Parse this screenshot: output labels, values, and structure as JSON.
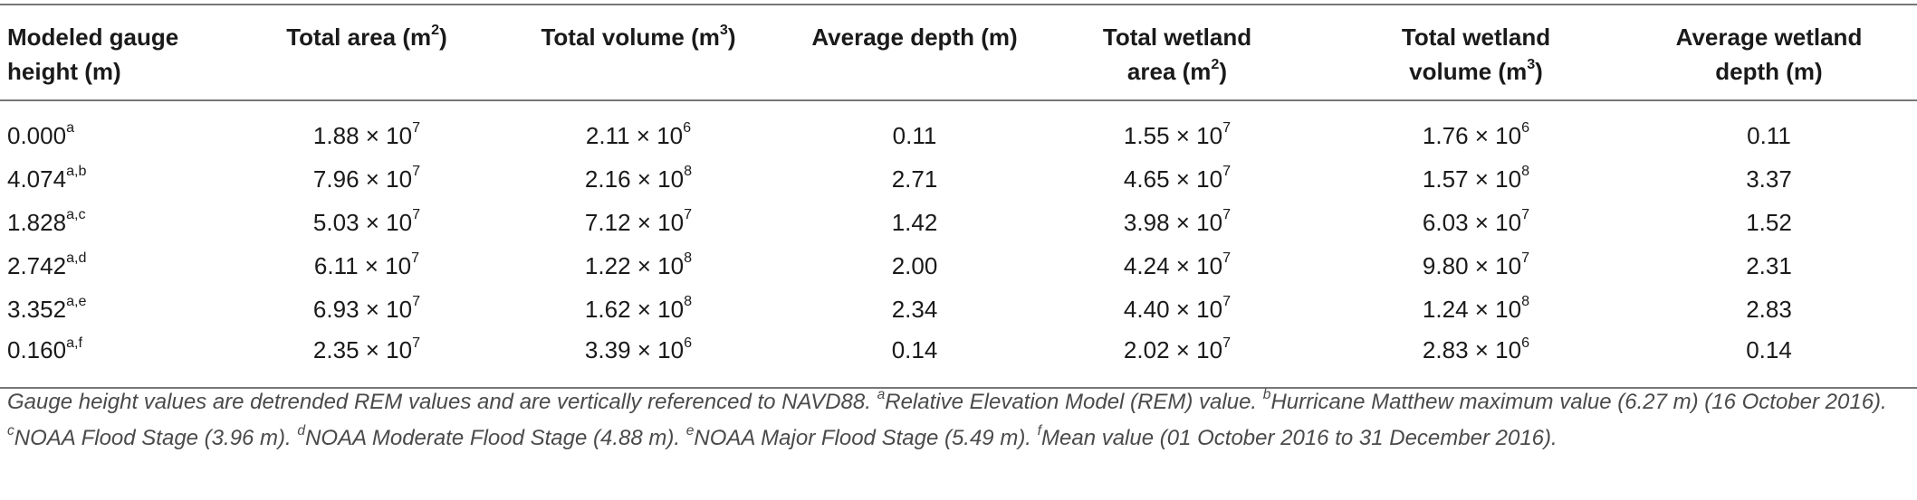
{
  "headers": [
    {
      "l1": "Modeled gauge",
      "l2": "height (m)",
      "sup": "",
      "tail": ""
    },
    {
      "l1": "Total area (m",
      "l2": "",
      "sup": "2",
      "tail": ")"
    },
    {
      "l1": "Total volume (m",
      "l2": "",
      "sup": "3",
      "tail": ")"
    },
    {
      "l1": "Average depth (m)",
      "l2": "",
      "sup": "",
      "tail": ""
    },
    {
      "l1": "Total wetland",
      "l2": "area (m",
      "sup": "2",
      "tail": ")"
    },
    {
      "l1": "Total wetland",
      "l2": "volume (m",
      "sup": "3",
      "tail": ")"
    },
    {
      "l1": "Average wetland",
      "l2": "depth (m)",
      "sup": "",
      "tail": ""
    }
  ],
  "times": "×",
  "rows": [
    {
      "gauge": "0.000",
      "gauge_sup": "a",
      "area": "1.88",
      "area_exp": "7",
      "vol": "2.11",
      "vol_exp": "6",
      "depth": "0.11",
      "wa": "1.55",
      "wa_exp": "7",
      "wv": "1.76",
      "wv_exp": "6",
      "wd": "0.11"
    },
    {
      "gauge": "4.074",
      "gauge_sup": "a,b",
      "area": "7.96",
      "area_exp": "7",
      "vol": "2.16",
      "vol_exp": "8",
      "depth": "2.71",
      "wa": "4.65",
      "wa_exp": "7",
      "wv": "1.57",
      "wv_exp": "8",
      "wd": "3.37"
    },
    {
      "gauge": "1.828",
      "gauge_sup": "a,c",
      "area": "5.03",
      "area_exp": "7",
      "vol": "7.12",
      "vol_exp": "7",
      "depth": "1.42",
      "wa": "3.98",
      "wa_exp": "7",
      "wv": "6.03",
      "wv_exp": "7",
      "wd": "1.52"
    },
    {
      "gauge": "2.742",
      "gauge_sup": "a,d",
      "area": "6.11",
      "area_exp": "7",
      "vol": "1.22",
      "vol_exp": "8",
      "depth": "2.00",
      "wa": "4.24",
      "wa_exp": "7",
      "wv": "9.80",
      "wv_exp": "7",
      "wd": "2.31"
    },
    {
      "gauge": "3.352",
      "gauge_sup": "a,e",
      "area": "6.93",
      "area_exp": "7",
      "vol": "1.62",
      "vol_exp": "8",
      "depth": "2.34",
      "wa": "4.40",
      "wa_exp": "7",
      "wv": "1.24",
      "wv_exp": "8",
      "wd": "2.83"
    },
    {
      "gauge": "0.160",
      "gauge_sup": "a,f",
      "area": "2.35",
      "area_exp": "7",
      "vol": "3.39",
      "vol_exp": "6",
      "depth": "0.14",
      "wa": "2.02",
      "wa_exp": "7",
      "wv": "2.83",
      "wv_exp": "6",
      "wd": "0.14"
    }
  ],
  "footnote": {
    "intro": "Gauge height values are detrended REM values and are vertically referenced to NAVD88. ",
    "notes": [
      {
        "mark": "a",
        "text": "Relative Elevation Model (REM) value. "
      },
      {
        "mark": "b",
        "text": "Hurricane Matthew maximum value (6.27 m) (16 October 2016). "
      },
      {
        "mark": "c",
        "text": "NOAA Flood Stage (3.96 m). "
      },
      {
        "mark": "d",
        "text": "NOAA Moderate Flood Stage (4.88 m). "
      },
      {
        "mark": "e",
        "text": "NOAA Major Flood Stage (5.49 m). "
      },
      {
        "mark": "f",
        "text": "Mean value (01 October 2016 to 31 December 2016)."
      }
    ]
  }
}
